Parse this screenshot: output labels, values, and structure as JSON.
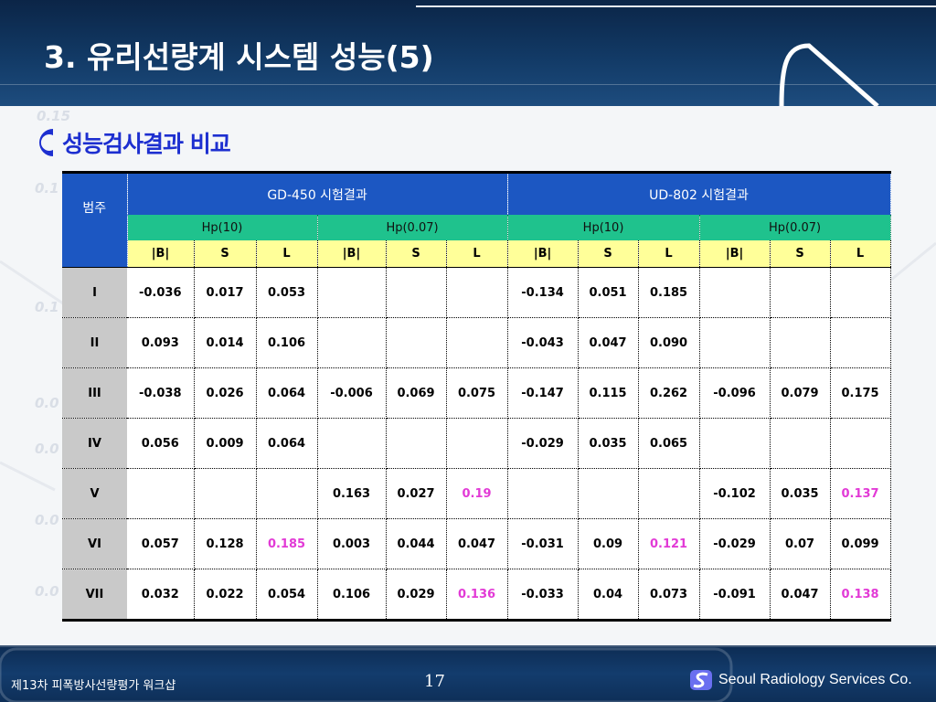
{
  "header": {
    "title": "3. 유리선량계 시스템 성능(5)"
  },
  "section": {
    "title": "성능검사결과 비교"
  },
  "table": {
    "category_header": "범주",
    "groups": [
      "GD-450 시험결과",
      "UD-802 시험결과"
    ],
    "subgroups": [
      "Hp(10)",
      "Hp(0.07)",
      "Hp(10)",
      "Hp(0.07)"
    ],
    "metrics": [
      "|B|",
      "S",
      "L",
      "|B|",
      "S",
      "L",
      "|B|",
      "S",
      "L",
      "|B|",
      "S",
      "L"
    ],
    "rows": [
      {
        "category": "I",
        "values": [
          "-0.036",
          "0.017",
          "0.053",
          "",
          "",
          "",
          "-0.134",
          "0.051",
          "0.185",
          "",
          "",
          ""
        ]
      },
      {
        "category": "II",
        "values": [
          "0.093",
          "0.014",
          "0.106",
          "",
          "",
          "",
          "-0.043",
          "0.047",
          "0.090",
          "",
          "",
          ""
        ]
      },
      {
        "category": "III",
        "values": [
          "-0.038",
          "0.026",
          "0.064",
          "-0.006",
          "0.069",
          "0.075",
          "-0.147",
          "0.115",
          "0.262",
          "-0.096",
          "0.079",
          "0.175"
        ]
      },
      {
        "category": "IV",
        "values": [
          "0.056",
          "0.009",
          "0.064",
          "",
          "",
          "",
          "-0.029",
          "0.035",
          "0.065",
          "",
          "",
          ""
        ]
      },
      {
        "category": "V",
        "values": [
          "",
          "",
          "",
          "0.163",
          "0.027",
          "0.19",
          "",
          "",
          "",
          "-0.102",
          "0.035",
          "0.137"
        ]
      },
      {
        "category": "VI",
        "values": [
          "0.057",
          "0.128",
          "0.185",
          "0.003",
          "0.044",
          "0.047",
          "-0.031",
          "0.09",
          "0.121",
          "-0.029",
          "0.07",
          "0.099"
        ]
      },
      {
        "category": "VII",
        "values": [
          "0.032",
          "0.022",
          "0.054",
          "0.106",
          "0.029",
          "0.136",
          "-0.033",
          "0.04",
          "0.073",
          "-0.091",
          "0.047",
          "0.138"
        ]
      }
    ]
  },
  "footer": {
    "event": "제13차 피폭방사선량평가 워크샵",
    "page": "17",
    "company": "Seoul Radiology Services Co."
  },
  "colors": {
    "header_blue": "#1c57c2",
    "subheader_green": "#1fc28d",
    "metric_yellow": "#ffff99",
    "category_gray": "#c9c9c9",
    "highlight_pink": "#e23ad6",
    "section_blue": "#1d2fd0"
  }
}
